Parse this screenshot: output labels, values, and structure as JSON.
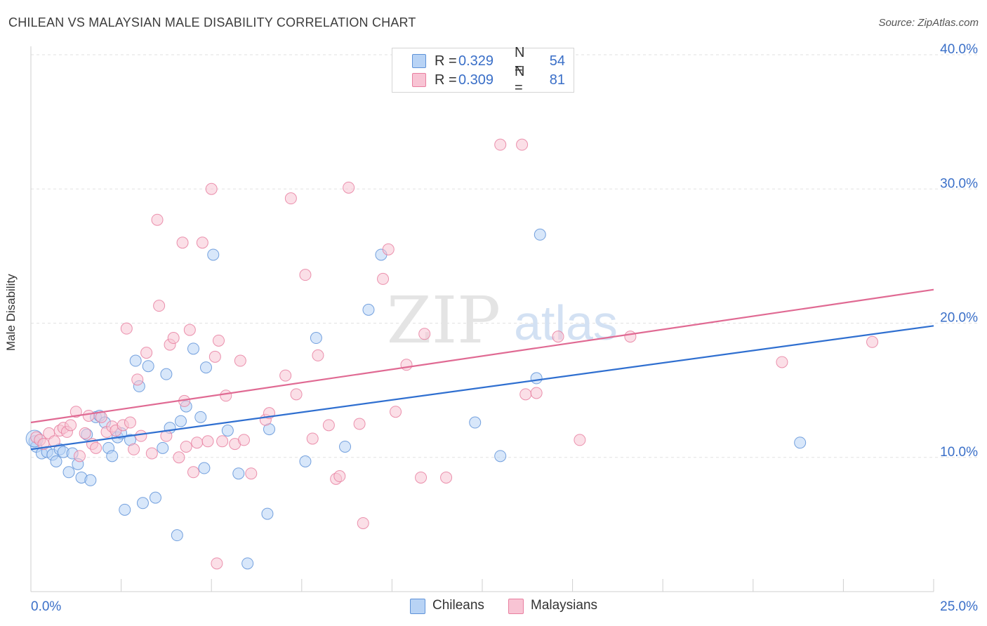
{
  "title": "CHILEAN VS MALAYSIAN MALE DISABILITY CORRELATION CHART",
  "source": "Source: ZipAtlas.com",
  "watermark": {
    "zip": "ZIP",
    "atlas": "atlas"
  },
  "legend": {
    "rows": [
      {
        "name": "Chileans",
        "r_label": "R =",
        "r_value": "0.329",
        "n_label": "N =",
        "n_value": "54",
        "fill": "#b8d3f5",
        "stroke": "#5e92d8"
      },
      {
        "name": "Malaysians",
        "r_label": "R =",
        "r_value": "0.309",
        "n_label": "N =",
        "n_value": "81",
        "fill": "#f8c4d4",
        "stroke": "#e87fa0"
      }
    ]
  },
  "bottom_legend": [
    "Chileans",
    "Malaysians"
  ],
  "chart_data": {
    "type": "scatter",
    "title": "CHILEAN VS MALAYSIAN MALE DISABILITY CORRELATION CHART",
    "xlabel": "",
    "ylabel": "Male Disability",
    "xlim": [
      0,
      25
    ],
    "ylim": [
      0,
      40
    ],
    "x_tick_labels": [
      "0.0%",
      "25.0%"
    ],
    "y_tick_values": [
      10,
      20,
      30,
      40
    ],
    "y_tick_labels": [
      "10.0%",
      "20.0%",
      "30.0%",
      "40.0%"
    ],
    "grid": true,
    "series": [
      {
        "name": "Chileans",
        "color": "#5e92d8",
        "fill": "#b8d3f5",
        "trend": {
          "x": [
            0,
            25
          ],
          "y": [
            10.6,
            19.8
          ],
          "color": "#2f6fd0"
        },
        "points": [
          [
            0.1,
            11.2
          ],
          [
            0.15,
            10.8
          ],
          [
            0.3,
            10.3
          ],
          [
            0.45,
            10.4
          ],
          [
            0.6,
            10.2
          ],
          [
            0.7,
            9.7
          ],
          [
            0.8,
            10.6
          ],
          [
            0.9,
            10.4
          ],
          [
            1.05,
            8.9
          ],
          [
            1.15,
            10.3
          ],
          [
            1.3,
            9.5
          ],
          [
            1.4,
            8.5
          ],
          [
            1.55,
            11.7
          ],
          [
            1.65,
            8.3
          ],
          [
            1.8,
            13.0
          ],
          [
            1.9,
            13.1
          ],
          [
            2.05,
            12.6
          ],
          [
            2.15,
            10.7
          ],
          [
            2.25,
            10.1
          ],
          [
            2.4,
            11.5
          ],
          [
            2.5,
            11.8
          ],
          [
            2.6,
            6.1
          ],
          [
            2.75,
            11.3
          ],
          [
            2.9,
            17.2
          ],
          [
            3.0,
            15.3
          ],
          [
            3.1,
            6.6
          ],
          [
            3.25,
            16.8
          ],
          [
            3.45,
            7.0
          ],
          [
            3.65,
            10.7
          ],
          [
            3.75,
            16.2
          ],
          [
            3.85,
            12.2
          ],
          [
            4.05,
            4.2
          ],
          [
            4.15,
            12.7
          ],
          [
            4.3,
            13.8
          ],
          [
            4.5,
            18.1
          ],
          [
            4.7,
            13.0
          ],
          [
            4.85,
            16.7
          ],
          [
            4.8,
            9.2
          ],
          [
            5.05,
            25.1
          ],
          [
            5.45,
            12.0
          ],
          [
            5.75,
            8.8
          ],
          [
            6.0,
            2.1
          ],
          [
            6.55,
            5.8
          ],
          [
            6.6,
            12.1
          ],
          [
            7.6,
            9.7
          ],
          [
            7.9,
            18.9
          ],
          [
            8.7,
            10.8
          ],
          [
            9.35,
            21.0
          ],
          [
            9.7,
            25.1
          ],
          [
            12.3,
            12.6
          ],
          [
            13.0,
            10.1
          ],
          [
            14.0,
            15.9
          ],
          [
            14.1,
            26.6
          ],
          [
            21.3,
            11.1
          ]
        ]
      },
      {
        "name": "Malaysians",
        "color": "#e87fa0",
        "fill": "#f8c4d4",
        "trend": {
          "x": [
            0,
            25
          ],
          "y": [
            12.6,
            22.5
          ],
          "color": "#e06a93"
        },
        "points": [
          [
            0.15,
            11.5
          ],
          [
            0.25,
            11.3
          ],
          [
            0.35,
            11.0
          ],
          [
            0.5,
            11.8
          ],
          [
            0.65,
            11.2
          ],
          [
            0.8,
            12.0
          ],
          [
            0.9,
            12.2
          ],
          [
            1.0,
            11.9
          ],
          [
            1.1,
            12.4
          ],
          [
            1.25,
            13.4
          ],
          [
            1.35,
            10.1
          ],
          [
            1.5,
            11.8
          ],
          [
            1.6,
            13.1
          ],
          [
            1.7,
            11.0
          ],
          [
            1.8,
            10.7
          ],
          [
            1.95,
            13.0
          ],
          [
            2.1,
            11.9
          ],
          [
            2.25,
            12.3
          ],
          [
            2.35,
            12.0
          ],
          [
            2.55,
            12.4
          ],
          [
            2.65,
            19.6
          ],
          [
            2.75,
            12.6
          ],
          [
            2.85,
            10.6
          ],
          [
            2.95,
            15.8
          ],
          [
            3.05,
            11.6
          ],
          [
            3.2,
            17.8
          ],
          [
            3.35,
            10.3
          ],
          [
            3.5,
            27.7
          ],
          [
            3.55,
            21.3
          ],
          [
            3.75,
            11.6
          ],
          [
            3.85,
            18.4
          ],
          [
            3.95,
            18.9
          ],
          [
            4.1,
            10.0
          ],
          [
            4.25,
            14.2
          ],
          [
            4.3,
            10.8
          ],
          [
            4.4,
            19.5
          ],
          [
            4.5,
            8.9
          ],
          [
            4.6,
            11.1
          ],
          [
            4.75,
            26.0
          ],
          [
            4.9,
            11.2
          ],
          [
            5.0,
            30.0
          ],
          [
            5.1,
            17.5
          ],
          [
            5.2,
            18.7
          ],
          [
            5.3,
            11.2
          ],
          [
            5.4,
            14.6
          ],
          [
            5.15,
            2.1
          ],
          [
            5.65,
            11.0
          ],
          [
            5.8,
            17.2
          ],
          [
            5.9,
            11.3
          ],
          [
            6.1,
            8.8
          ],
          [
            6.5,
            12.8
          ],
          [
            6.6,
            13.3
          ],
          [
            7.05,
            16.1
          ],
          [
            7.2,
            29.3
          ],
          [
            7.35,
            14.7
          ],
          [
            7.6,
            23.6
          ],
          [
            7.8,
            11.4
          ],
          [
            7.95,
            17.6
          ],
          [
            8.25,
            12.4
          ],
          [
            8.45,
            8.4
          ],
          [
            8.55,
            8.6
          ],
          [
            8.8,
            30.1
          ],
          [
            9.1,
            12.5
          ],
          [
            9.2,
            5.1
          ],
          [
            9.75,
            23.3
          ],
          [
            9.9,
            25.5
          ],
          [
            10.1,
            13.4
          ],
          [
            10.4,
            16.9
          ],
          [
            10.8,
            8.5
          ],
          [
            10.9,
            19.2
          ],
          [
            11.5,
            8.5
          ],
          [
            13.0,
            33.3
          ],
          [
            13.6,
            33.3
          ],
          [
            13.7,
            14.7
          ],
          [
            14.0,
            14.8
          ],
          [
            14.6,
            19.0
          ],
          [
            15.2,
            11.3
          ],
          [
            16.6,
            19.0
          ],
          [
            20.8,
            17.1
          ],
          [
            23.3,
            18.6
          ],
          [
            4.2,
            26.0
          ]
        ]
      }
    ]
  }
}
